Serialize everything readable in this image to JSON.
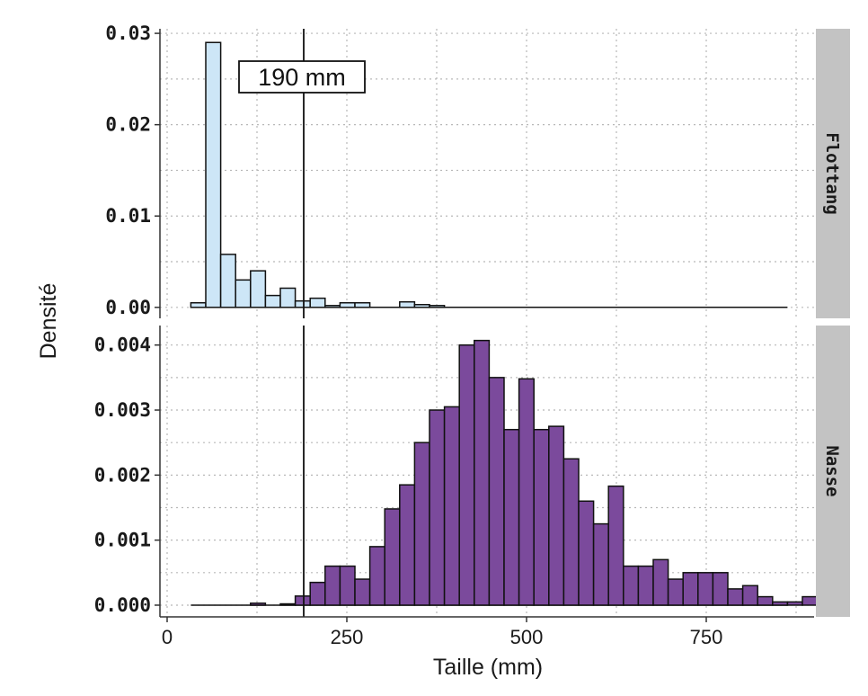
{
  "chart_data": {
    "type": "bar",
    "subtype": "faceted-histogram",
    "xlabel": "Taille (mm)",
    "ylabel": "Densité",
    "xlim": [
      -10,
      900
    ],
    "x_ticks": [
      0,
      250,
      500,
      750
    ],
    "x_tick_labels": [
      "0",
      "250",
      "500",
      "750"
    ],
    "bin_width": 20.75,
    "bin_start": 33,
    "vline": 190,
    "annotation": "190 mm",
    "grid": true,
    "grid_style": "dotted",
    "panels": [
      {
        "strip_label": "Flottang",
        "fill": "#cde6f7",
        "ylim": [
          -0.0012,
          0.0305
        ],
        "y_ticks": [
          0,
          0.01,
          0.02,
          0.03
        ],
        "y_tick_labels": [
          "0.00",
          "0.01",
          "0.02",
          "0.03"
        ],
        "values": [
          0.0005,
          0.029,
          0.0058,
          0.003,
          0.004,
          0.0013,
          0.0021,
          0.0007,
          0.001,
          0.0002,
          0.0005,
          0.0005,
          0.0,
          0.0,
          0.0006,
          0.0003,
          0.0002,
          0.0,
          0.0,
          0.0,
          0.0,
          0.0,
          0.0,
          0.0,
          0.0,
          0.0,
          0.0,
          0.0,
          0.0,
          0.0,
          0.0,
          0.0,
          0.0
        ]
      },
      {
        "strip_label": "Nasse",
        "fill": "#7b4a9c",
        "ylim": [
          -0.00018,
          0.0043
        ],
        "y_ticks": [
          0,
          0.001,
          0.002,
          0.003,
          0.004
        ],
        "y_tick_labels": [
          "0.000",
          "0.001",
          "0.002",
          "0.003",
          "0.004"
        ],
        "values": [
          0.0,
          0.0,
          0.0,
          0.0,
          3e-05,
          0.0,
          2e-05,
          0.00014,
          0.00035,
          0.0006,
          0.0006,
          0.0004,
          0.0009,
          0.00148,
          0.00185,
          0.0025,
          0.003,
          0.00305,
          0.004,
          0.00407,
          0.0035,
          0.0027,
          0.00348,
          0.0027,
          0.00275,
          0.00225,
          0.0016,
          0.00125,
          0.00183,
          0.0006,
          0.0006,
          0.0007,
          0.0004,
          0.0005,
          0.0005,
          0.0005,
          0.00025,
          0.0003,
          0.00013,
          5e-05,
          5e-05,
          0.00013
        ]
      }
    ]
  }
}
